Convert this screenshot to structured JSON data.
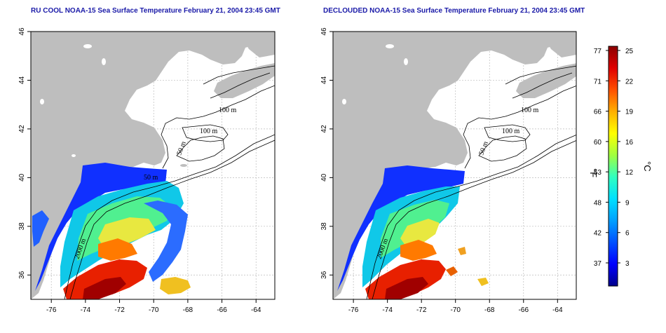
{
  "panels": [
    {
      "id": "left",
      "title": "RU COOL NOAA-15 Sea Surface Temperature February 21, 2004 23:45 GMT",
      "variant": "raw"
    },
    {
      "id": "right",
      "title": "DECLOUDED NOAA-15 Sea Surface Temperature February 21, 2004 23:45 GMT",
      "variant": "declouded"
    }
  ],
  "axes": {
    "lon_ticks": [
      "-76",
      "-74",
      "-72",
      "-70",
      "-68",
      "-66",
      "-64"
    ],
    "lat_ticks": [
      "36",
      "38",
      "40",
      "42",
      "44",
      "46"
    ],
    "lon_range": [
      -77.2,
      -62.9
    ],
    "lat_range": [
      35.0,
      46.0
    ]
  },
  "contour_labels": [
    "100 m",
    "100 m",
    "50 m",
    "2000 m",
    "50 m"
  ],
  "colorbar": {
    "fahrenheit_ticks": [
      "77",
      "71",
      "66",
      "60",
      "53",
      "48",
      "42",
      "37"
    ],
    "celsius_ticks": [
      "25",
      "22",
      "19",
      "16",
      "12",
      "9",
      "6",
      "3"
    ],
    "unit_f": "°F",
    "unit_c": "°C",
    "range_c": [
      0,
      26
    ],
    "colors": [
      "#00008b",
      "#0000ff",
      "#0050ff",
      "#00a0ff",
      "#00e0ff",
      "#30ffc0",
      "#a0ff40",
      "#ffff00",
      "#ffb000",
      "#ff5000",
      "#e00000",
      "#8b0000"
    ]
  },
  "colors": {
    "land": "#bebebe",
    "title": "#1a1aa8",
    "grid": "#bbbbbb"
  }
}
